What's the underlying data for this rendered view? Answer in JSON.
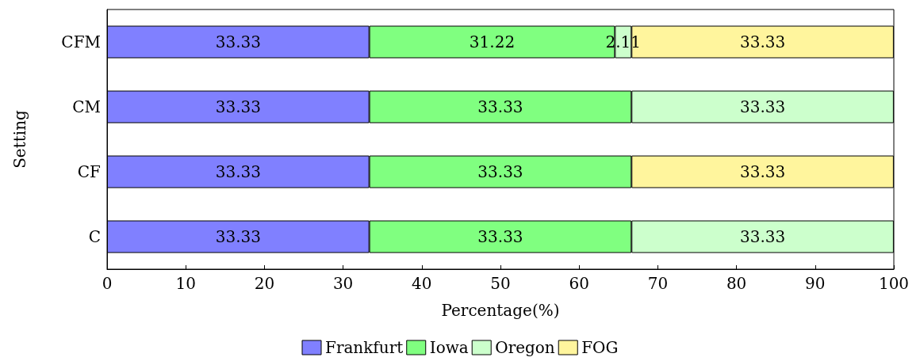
{
  "chart_data": {
    "type": "bar",
    "orientation": "horizontal",
    "stacked": true,
    "xlabel": "Percentage(%)",
    "ylabel": "Setting",
    "categories": [
      "CFM",
      "CM",
      "CF",
      "C"
    ],
    "series": [
      {
        "name": "Frankfurt",
        "color": "#8080ff",
        "values": [
          33.33,
          33.33,
          33.33,
          33.33
        ]
      },
      {
        "name": "Iowa",
        "color": "#80ff80",
        "values": [
          31.22,
          33.33,
          33.33,
          33.33
        ]
      },
      {
        "name": "Oregon",
        "color": "#ccffcc",
        "values": [
          2.11,
          33.33,
          null,
          33.33
        ]
      },
      {
        "name": "FOG",
        "color": "#fff59d",
        "values": [
          33.33,
          null,
          33.33,
          null
        ]
      }
    ],
    "xlim": [
      0,
      100
    ],
    "xticks": [
      0,
      10,
      20,
      30,
      40,
      50,
      60,
      70,
      80,
      90,
      100
    ],
    "data_labels": true,
    "legend": "bottom",
    "grid": false
  }
}
